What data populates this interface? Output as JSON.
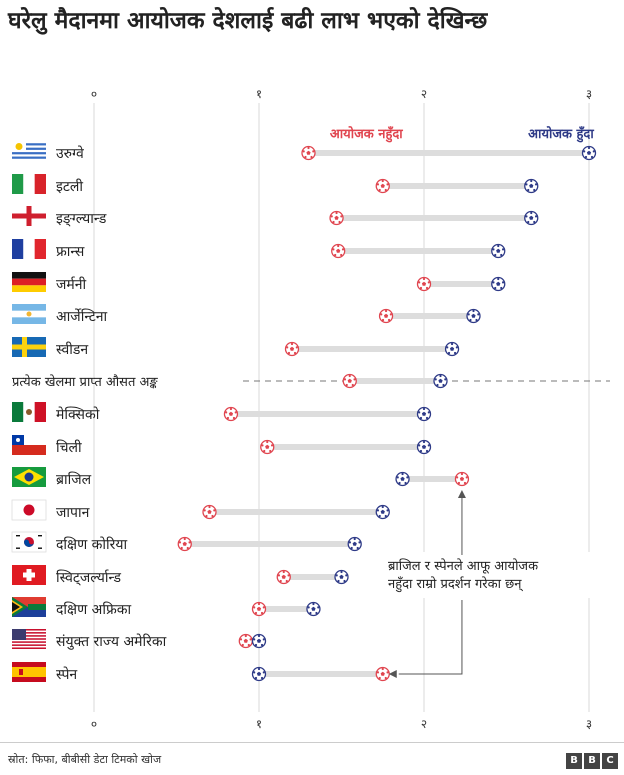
{
  "title": "घरेलु मैदानमा आयोजक देशलाई बढी लाभ भएको देखिन्छ",
  "source": "स्रोत: फिफा, बीबीसी डेटा टिमको खोज",
  "logo": [
    "B",
    "B",
    "C"
  ],
  "colors": {
    "not_host": "#e0454f",
    "host": "#2e3a87",
    "bar": "#dddddd",
    "grid": "#d9d9d9",
    "text": "#222222"
  },
  "chart_data": {
    "type": "dumbbell",
    "title": "घरेलु मैदानमा आयोजक देशलाई बढी लाभ भएको देखिन्छ",
    "x_ticks": [
      {
        "value": 0,
        "label": "०"
      },
      {
        "value": 1,
        "label": "१"
      },
      {
        "value": 2,
        "label": "२"
      },
      {
        "value": 3,
        "label": "३"
      }
    ],
    "xlim": [
      0,
      3
    ],
    "grid": true,
    "series": [
      {
        "name": "आयोजक नहुँदा",
        "key": "not_host",
        "color": "#e0454f"
      },
      {
        "name": "आयोजक हुँदा",
        "key": "host",
        "color": "#2e3a87"
      }
    ],
    "countries": [
      {
        "name": "उरुग्वे",
        "flag": "uruguay",
        "not_host": 1.3,
        "host": 3.0
      },
      {
        "name": "इटली",
        "flag": "italy",
        "not_host": 1.75,
        "host": 2.65
      },
      {
        "name": "इङ्ग्ल्यान्ड",
        "flag": "england",
        "not_host": 1.47,
        "host": 2.65
      },
      {
        "name": "फ्रान्स",
        "flag": "france",
        "not_host": 1.48,
        "host": 2.45
      },
      {
        "name": "जर्मनी",
        "flag": "germany",
        "not_host": 2.0,
        "host": 2.45
      },
      {
        "name": "आर्जेन्टिना",
        "flag": "argentina",
        "not_host": 1.77,
        "host": 2.3
      },
      {
        "name": "स्वीडन",
        "flag": "sweden",
        "not_host": 1.2,
        "host": 2.17
      }
    ],
    "reference": {
      "name": "प्रत्येक खेलमा प्राप्त औसत अङ्क",
      "not_host": 1.55,
      "host": 2.1
    },
    "countries_below": [
      {
        "name": "मेक्सिको",
        "flag": "mexico",
        "not_host": 0.83,
        "host": 2.0
      },
      {
        "name": "चिली",
        "flag": "chile",
        "not_host": 1.05,
        "host": 2.0
      },
      {
        "name": "ब्राजिल",
        "flag": "brazil",
        "not_host": 2.23,
        "host": 1.87
      },
      {
        "name": "जापान",
        "flag": "japan",
        "not_host": 0.7,
        "host": 1.75
      },
      {
        "name": "दक्षिण कोरिया",
        "flag": "korea",
        "not_host": 0.55,
        "host": 1.58
      },
      {
        "name": "स्विट्जर्ल्यान्ड",
        "flag": "switzerland",
        "not_host": 1.15,
        "host": 1.5
      },
      {
        "name": "दक्षिण अफ्रिका",
        "flag": "southafrica",
        "not_host": 1.0,
        "host": 1.33
      },
      {
        "name": "संयुक्त राज्य अमेरिका",
        "flag": "usa",
        "not_host": 0.92,
        "host": 1.0
      },
      {
        "name": "स्पेन",
        "flag": "spain",
        "not_host": 1.75,
        "host": 1.0
      }
    ],
    "annotation": "ब्राजिल र स्पेनले आफू आयोजक नहुँदा राम्रो प्रदर्शन गरेका छन्"
  }
}
